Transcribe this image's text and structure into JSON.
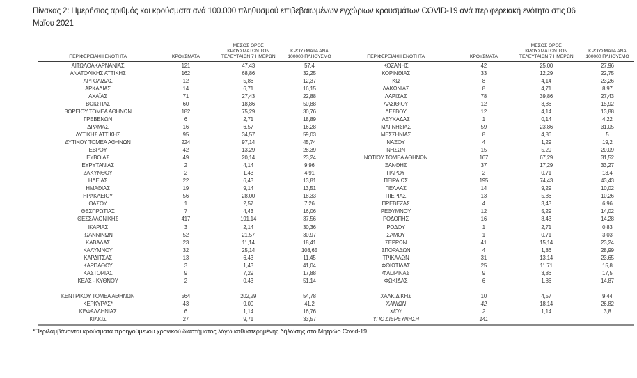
{
  "title": "Πίνακας 2:  Ημερήσιος αριθμός και κρούσματα ανά 100.000 πληθυσμού επιβεβαιωμένων εγχώριων κρουσμάτων COVID-19 ανά περιφερειακή ενότητα στις 06 Μαΐου 2021",
  "footnote": "*Περιλαμβάνονται κρούσματα προηγούμενου χρονικού διαστήματος λόγω καθυστερημένης δήλωσης στο Μητρώο Covid-19",
  "table_headers": {
    "region": "ΠΕΡΙΦΕΡΕΙΑΚΗ ΕΝΟΤΗΤΑ",
    "cases": "ΚΡΟΥΣΜΑΤΑ",
    "avg7": "ΜΕΣΟΣ ΟΡΟΣ\nΚΡΟΥΣΜΑΤΩΝ ΤΩΝ\nΤΕΛΕΥΤΑΙΩΝ 7 ΗΜΕΡΩΝ",
    "per100k": "ΚΡΟΥΣΜΑΤΑ ΑΝΑ\n100000 ΠΛΗΘΥΣΜΟ"
  },
  "colors": {
    "text": "#3a3a3a",
    "header_rule": "#3d3d3d",
    "bottom_rule": "#8a8a8a",
    "background": "#ffffff"
  },
  "tables": {
    "left": {
      "rows": [
        {
          "name": "ΑΙΤΩΛΟΑΚΑΡΝΑΝΙΑΣ",
          "cases": "121",
          "avg7": "47,43",
          "per100k": "57,4"
        },
        {
          "name": "ΑΝΑΤΟΛΙΚΗΣ ΑΤΤΙΚΗΣ",
          "cases": "162",
          "avg7": "68,86",
          "per100k": "32,25"
        },
        {
          "name": "ΑΡΓΟΛΙΔΑΣ",
          "cases": "12",
          "avg7": "5,86",
          "per100k": "12,37"
        },
        {
          "name": "ΑΡΚΑΔΙΑΣ",
          "cases": "14",
          "avg7": "6,71",
          "per100k": "16,15"
        },
        {
          "name": "ΑΧΑΪΑΣ",
          "cases": "71",
          "avg7": "27,43",
          "per100k": "22,88"
        },
        {
          "name": "ΒΟΙΩΤΙΑΣ",
          "cases": "60",
          "avg7": "18,86",
          "per100k": "50,88"
        },
        {
          "name": "ΒΟΡΕΙΟΥ ΤΟΜΕΑ ΑΘΗΝΩΝ",
          "cases": "182",
          "avg7": "75,29",
          "per100k": "30,76"
        },
        {
          "name": "ΓΡΕΒΕΝΩΝ",
          "cases": "6",
          "avg7": "2,71",
          "per100k": "18,89"
        },
        {
          "name": "ΔΡΑΜΑΣ",
          "cases": "16",
          "avg7": "6,57",
          "per100k": "16,28"
        },
        {
          "name": "ΔΥΤΙΚΗΣ ΑΤΤΙΚΗΣ",
          "cases": "95",
          "avg7": "34,57",
          "per100k": "59,03"
        },
        {
          "name": "ΔΥΤΙΚΟΥ ΤΟΜΕΑ ΑΘΗΝΩΝ",
          "cases": "224",
          "avg7": "97,14",
          "per100k": "45,74"
        },
        {
          "name": "ΕΒΡΟΥ",
          "cases": "42",
          "avg7": "13,29",
          "per100k": "28,39"
        },
        {
          "name": "ΕΥΒΟΙΑΣ",
          "cases": "49",
          "avg7": "20,14",
          "per100k": "23,24"
        },
        {
          "name": "ΕΥΡΥΤΑΝΙΑΣ",
          "cases": "2",
          "avg7": "4,14",
          "per100k": "9,96"
        },
        {
          "name": "ΖΑΚΥΝΘΟΥ",
          "cases": "2",
          "avg7": "1,43",
          "per100k": "4,91"
        },
        {
          "name": "ΗΛΕΙΑΣ",
          "cases": "22",
          "avg7": "6,43",
          "per100k": "13,81"
        },
        {
          "name": "ΗΜΑΘΙΑΣ",
          "cases": "19",
          "avg7": "9,14",
          "per100k": "13,51"
        },
        {
          "name": "ΗΡΑΚΛΕΙΟΥ",
          "cases": "56",
          "avg7": "28,00",
          "per100k": "18,33"
        },
        {
          "name": "ΘΑΣΟΥ",
          "cases": "1",
          "avg7": "2,57",
          "per100k": "7,26"
        },
        {
          "name": "ΘΕΣΠΡΩΤΙΑΣ",
          "cases": "7",
          "avg7": "4,43",
          "per100k": "16,06"
        },
        {
          "name": "ΘΕΣΣΑΛΟΝΙΚΗΣ",
          "cases": "417",
          "avg7": "191,14",
          "per100k": "37,56"
        },
        {
          "name": "ΙΚΑΡΙΑΣ",
          "cases": "3",
          "avg7": "2,14",
          "per100k": "30,36"
        },
        {
          "name": "ΙΩΑΝΝΙΝΩΝ",
          "cases": "52",
          "avg7": "21,57",
          "per100k": "30,97"
        },
        {
          "name": "ΚΑΒΑΛΑΣ",
          "cases": "23",
          "avg7": "11,14",
          "per100k": "18,41"
        },
        {
          "name": "ΚΑΛΥΜΝΟΥ",
          "cases": "32",
          "avg7": "25,14",
          "per100k": "108,65"
        },
        {
          "name": "ΚΑΡΔΙΤΣΑΣ",
          "cases": "13",
          "avg7": "6,43",
          "per100k": "11,45"
        },
        {
          "name": "ΚΑΡΠΑΘΟΥ",
          "cases": "3",
          "avg7": "1,43",
          "per100k": "41,04"
        },
        {
          "name": "ΚΑΣΤΟΡΙΑΣ",
          "cases": "9",
          "avg7": "7,29",
          "per100k": "17,88"
        },
        {
          "name": "ΚΕΑΣ - ΚΥΘΝΟΥ",
          "cases": "2",
          "avg7": "0,43",
          "per100k": "51,14"
        },
        {
          "spacer": true
        },
        {
          "name": "ΚΕΝΤΡΙΚΟΥ ΤΟΜΕΑ ΑΘΗΝΩΝ",
          "cases": "564",
          "avg7": "202,29",
          "per100k": "54,78"
        },
        {
          "name": "ΚΕΡΚΥΡΑΣ*",
          "cases": "43",
          "avg7": "9,00",
          "per100k": "41,2"
        },
        {
          "name": "ΚΕΦΑΛΛΗΝΙΑΣ",
          "cases": "6",
          "avg7": "1,14",
          "per100k": "16,76"
        },
        {
          "name": "ΚΙΛΚΙΣ",
          "cases": "27",
          "avg7": "9,71",
          "per100k": "33,57"
        }
      ]
    },
    "right": {
      "rows": [
        {
          "name": "ΚΟΖΑΝΗΣ",
          "cases": "42",
          "avg7": "25,00",
          "per100k": "27,96"
        },
        {
          "name": "ΚΟΡΙΝΘΙΑΣ",
          "cases": "33",
          "avg7": "12,29",
          "per100k": "22,75"
        },
        {
          "name": "ΚΩ",
          "cases": "8",
          "avg7": "4,14",
          "per100k": "23,26"
        },
        {
          "name": "ΛΑΚΩΝΙΑΣ",
          "cases": "8",
          "avg7": "4,71",
          "per100k": "8,97"
        },
        {
          "name": "ΛΑΡΙΣΑΣ",
          "cases": "78",
          "avg7": "39,86",
          "per100k": "27,43"
        },
        {
          "name": "ΛΑΣΙΘΙΟΥ",
          "cases": "12",
          "avg7": "3,86",
          "per100k": "15,92"
        },
        {
          "name": "ΛΕΣΒΟΥ",
          "cases": "12",
          "avg7": "4,14",
          "per100k": "13,88"
        },
        {
          "name": "ΛΕΥΚΑΔΑΣ",
          "cases": "1",
          "avg7": "0,14",
          "per100k": "4,22"
        },
        {
          "name": "ΜΑΓΝΗΣΙΑΣ",
          "cases": "59",
          "avg7": "23,86",
          "per100k": "31,05"
        },
        {
          "name": "ΜΕΣΣΗΝΙΑΣ",
          "cases": "8",
          "avg7": "4,86",
          "per100k": "5"
        },
        {
          "name": "ΝΑΞΟΥ",
          "cases": "4",
          "avg7": "1,29",
          "per100k": "19,2"
        },
        {
          "name": "ΝΗΣΩΝ",
          "cases": "15",
          "avg7": "5,29",
          "per100k": "20,09"
        },
        {
          "name": "ΝΟΤΙΟΥ ΤΟΜΕΑ ΑΘΗΝΩΝ",
          "cases": "167",
          "avg7": "67,29",
          "per100k": "31,52"
        },
        {
          "name": "ΞΑΝΘΗΣ",
          "cases": "37",
          "avg7": "17,29",
          "per100k": "33,27"
        },
        {
          "name": "ΠΑΡΟΥ",
          "cases": "2",
          "avg7": "0,71",
          "per100k": "13,4"
        },
        {
          "name": "ΠΕΙΡΑΙΩΣ",
          "cases": "195",
          "avg7": "74,43",
          "per100k": "43,43"
        },
        {
          "name": "ΠΕΛΛΑΣ",
          "cases": "14",
          "avg7": "9,29",
          "per100k": "10,02"
        },
        {
          "name": "ΠΙΕΡΙΑΣ",
          "cases": "13",
          "avg7": "5,86",
          "per100k": "10,26"
        },
        {
          "name": "ΠΡΕΒΕΖΑΣ",
          "cases": "4",
          "avg7": "3,43",
          "per100k": "6,96"
        },
        {
          "name": "ΡΕΘΥΜΝΟΥ",
          "cases": "12",
          "avg7": "5,29",
          "per100k": "14,02"
        },
        {
          "name": "ΡΟΔΟΠΗΣ",
          "cases": "16",
          "avg7": "8,43",
          "per100k": "14,28"
        },
        {
          "name": "ΡΟΔΟΥ",
          "cases": "1",
          "avg7": "2,71",
          "per100k": "0,83"
        },
        {
          "name": "ΣΑΜΟΥ",
          "cases": "1",
          "avg7": "0,71",
          "per100k": "3,03"
        },
        {
          "name": "ΣΕΡΡΩΝ",
          "cases": "41",
          "avg7": "15,14",
          "per100k": "23,24"
        },
        {
          "name": "ΣΠΟΡΑΔΩΝ",
          "cases": "4",
          "avg7": "1,86",
          "per100k": "28,99"
        },
        {
          "name": "ΤΡΙΚΑΛΩΝ",
          "cases": "31",
          "avg7": "13,14",
          "per100k": "23,65"
        },
        {
          "name": "ΦΘΙΩΤΙΔΑΣ",
          "cases": "25",
          "avg7": "11,71",
          "per100k": "15,8"
        },
        {
          "name": "ΦΛΩΡΙΝΑΣ",
          "cases": "9",
          "avg7": "3,86",
          "per100k": "17,5"
        },
        {
          "name": "ΦΩΚΙΔΑΣ",
          "cases": "6",
          "avg7": "1,86",
          "per100k": "14,87"
        },
        {
          "spacer": true
        },
        {
          "name": "ΧΑΛΚΙΔΙΚΗΣ",
          "cases": "10",
          "avg7": "4,57",
          "per100k": "9,44"
        },
        {
          "name": "ΧΑΝΙΩΝ",
          "cases": "42",
          "avg7": "18,14",
          "per100k": "26,82",
          "italic": true
        },
        {
          "name": "ΧΙΟΥ",
          "cases": "2",
          "avg7": "1,14",
          "per100k": "3,8",
          "italic": true
        },
        {
          "name": "ΥΠΟ ΔΙΕΡΕΥΝΗΣΗ",
          "cases": "141",
          "avg7": "",
          "per100k": "",
          "italic": true
        }
      ]
    }
  }
}
